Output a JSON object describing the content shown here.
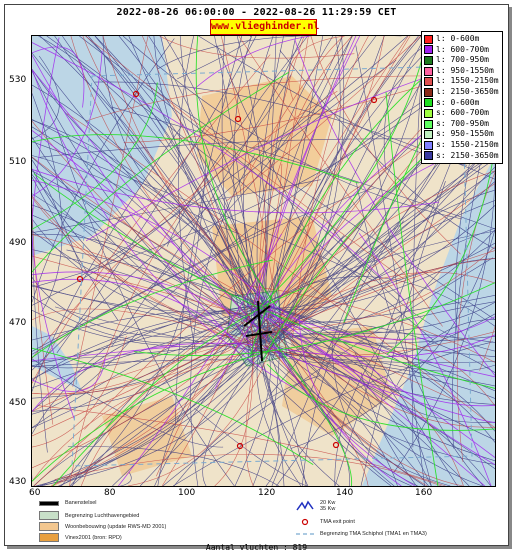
{
  "title": "2022-08-26 06:00:00 - 2022-08-26 11:29:59 CET",
  "site": "www.vlieghinder.nl",
  "y_ticks": [
    "530",
    "510",
    "490",
    "470",
    "450",
    "430"
  ],
  "x_ticks": [
    "60",
    "80",
    "100",
    "120",
    "140",
    "160"
  ],
  "legend": [
    {
      "label": "l: 0-600m",
      "color": "#ff2020"
    },
    {
      "label": "l: 600-700m",
      "color": "#a020f0"
    },
    {
      "label": "l: 700-950m",
      "color": "#1e7a1e"
    },
    {
      "label": "l: 950-1550m",
      "color": "#ff60a0"
    },
    {
      "label": "l: 1550-2150m",
      "color": "#e05050"
    },
    {
      "label": "l: 2150-3650m",
      "color": "#8b2a1a"
    },
    {
      "label": "s: 0-600m",
      "color": "#20e020"
    },
    {
      "label": "s: 600-700m",
      "color": "#a0ff40"
    },
    {
      "label": "s: 700-950m",
      "color": "#60ff60"
    },
    {
      "label": "s: 950-1550m",
      "color": "#c0f0c0"
    },
    {
      "label": "s: 1550-2150m",
      "color": "#8080ff"
    },
    {
      "label": "s: 2150-3650m",
      "color": "#3a3aa0"
    }
  ],
  "bottom_legend": {
    "runway": "Banenstelsel",
    "airport": "Begrenzing Luchthavengebied",
    "housing": "Woonbebouwing (update RWS-MD 2001)",
    "vinex": "Vinex2001 (bron: RPD)",
    "wind_20": "20 Kw",
    "wind_35": "35 Kw",
    "tma_exit": "TMA exit point",
    "tma_border": "Begrenzing TMA Schiphol  (TMA1 en TMA3)"
  },
  "count": "Aantal vluchten : 819"
}
